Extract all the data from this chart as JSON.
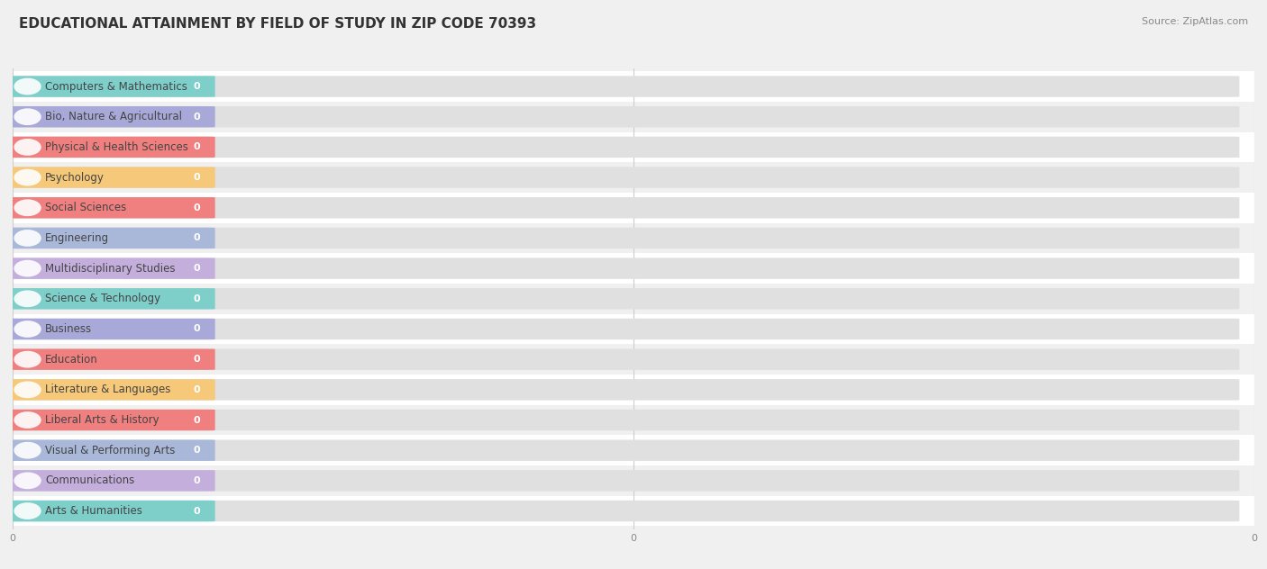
{
  "title": "EDUCATIONAL ATTAINMENT BY FIELD OF STUDY IN ZIP CODE 70393",
  "source": "Source: ZipAtlas.com",
  "categories": [
    "Computers & Mathematics",
    "Bio, Nature & Agricultural",
    "Physical & Health Sciences",
    "Psychology",
    "Social Sciences",
    "Engineering",
    "Multidisciplinary Studies",
    "Science & Technology",
    "Business",
    "Education",
    "Literature & Languages",
    "Liberal Arts & History",
    "Visual & Performing Arts",
    "Communications",
    "Arts & Humanities"
  ],
  "values": [
    0,
    0,
    0,
    0,
    0,
    0,
    0,
    0,
    0,
    0,
    0,
    0,
    0,
    0,
    0
  ],
  "bar_colors": [
    "#7ECECA",
    "#A9A9D9",
    "#F08080",
    "#F5C87A",
    "#F08080",
    "#A9B8D9",
    "#C4AEDC",
    "#7ECECA",
    "#A9A9D9",
    "#F08080",
    "#F5C87A",
    "#F08080",
    "#A9B8D9",
    "#C4AEDC",
    "#7ECECA"
  ],
  "background_color": "#f0f0f0",
  "row_color_odd": "#f0f0f0",
  "row_color_even": "#ffffff",
  "bar_bg_color": "#e0e0e0",
  "grid_color": "#cccccc",
  "title_color": "#333333",
  "source_color": "#888888",
  "label_text_color": "#444444",
  "value_text_color": "#ffffff",
  "title_fontsize": 11,
  "label_fontsize": 8.5,
  "value_fontsize": 8,
  "tick_fontsize": 8,
  "bar_height": 0.68,
  "n_xticks": 3,
  "xtick_labels": [
    "0",
    "0",
    "0"
  ],
  "figwidth": 14.06,
  "figheight": 6.32
}
